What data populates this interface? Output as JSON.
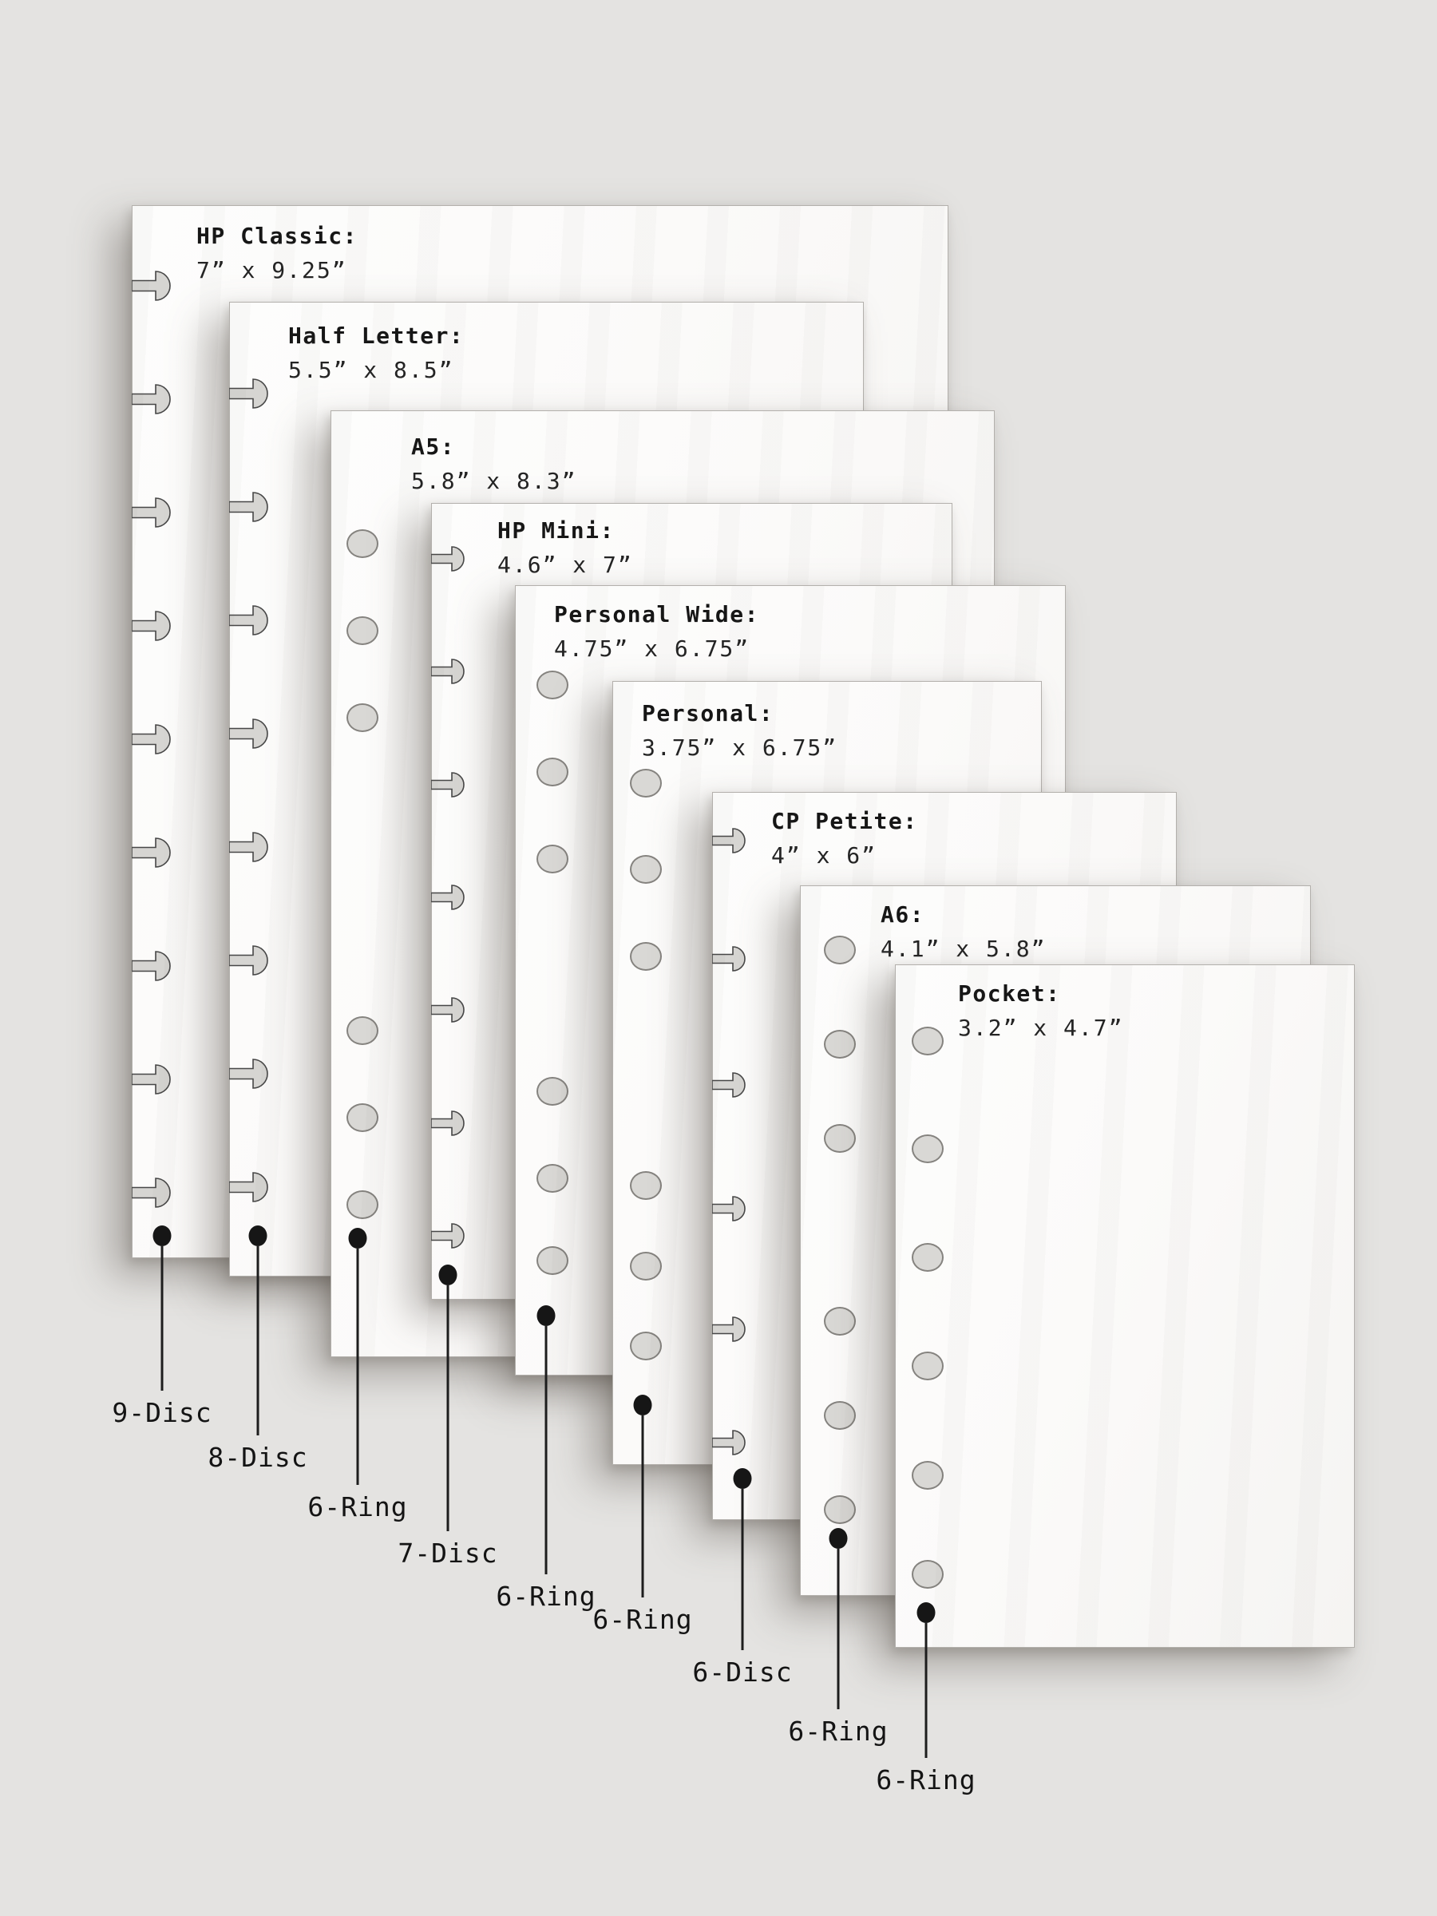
{
  "meta": {
    "description": "Planner paper size comparison diagram",
    "background_color": "#e4e3e1",
    "paper_color": "#fbfaf9",
    "ink_color": "#1d1d1d",
    "hole_fill_color": "#d8d7d4",
    "disc_outline_color": "#474747",
    "ring_outline_color": "#85837f"
  },
  "pages": [
    {
      "name": "hp-classic",
      "title": "HP Classic:",
      "dimensions": "7” x 9.25”",
      "binding_label": "9-Disc",
      "binding_type": "disc",
      "hole_count": 9,
      "hole_arrangement": "evenly-spaced"
    },
    {
      "name": "half-letter",
      "title": "Half Letter:",
      "dimensions": "5.5” x 8.5”",
      "binding_label": "8-Disc",
      "binding_type": "disc",
      "hole_count": 8,
      "hole_arrangement": "evenly-spaced"
    },
    {
      "name": "a5",
      "title": "A5:",
      "dimensions": "5.8” x 8.3”",
      "binding_label": "6-Ring",
      "binding_type": "ring",
      "hole_count": 6,
      "hole_arrangement": "two-groups-of-three"
    },
    {
      "name": "hp-mini",
      "title": "HP Mini:",
      "dimensions": "4.6” x 7”",
      "binding_label": "7-Disc",
      "binding_type": "disc",
      "hole_count": 7,
      "hole_arrangement": "evenly-spaced"
    },
    {
      "name": "personal-wide",
      "title": "Personal Wide:",
      "dimensions": "4.75” x 6.75”",
      "binding_label": "6-Ring",
      "binding_type": "ring",
      "hole_count": 6,
      "hole_arrangement": "two-groups-of-three"
    },
    {
      "name": "personal",
      "title": "Personal:",
      "dimensions": "3.75” x 6.75”",
      "binding_label": "6-Ring",
      "binding_type": "ring",
      "hole_count": 6,
      "hole_arrangement": "two-groups-of-three"
    },
    {
      "name": "cp-petite",
      "title": "CP Petite:",
      "dimensions": "4” x 6”",
      "binding_label": "6-Disc",
      "binding_type": "disc",
      "hole_count": 6,
      "hole_arrangement": "evenly-spaced"
    },
    {
      "name": "a6",
      "title": "A6:",
      "dimensions": "4.1” x 5.8”",
      "binding_label": "6-Ring",
      "binding_type": "ring",
      "hole_count": 6,
      "hole_arrangement": "two-groups-of-three"
    },
    {
      "name": "pocket",
      "title": "Pocket:",
      "dimensions": "3.2” x 4.7”",
      "binding_label": "6-Ring",
      "binding_type": "ring",
      "hole_count": 6,
      "hole_arrangement": "evenly-spaced"
    }
  ]
}
